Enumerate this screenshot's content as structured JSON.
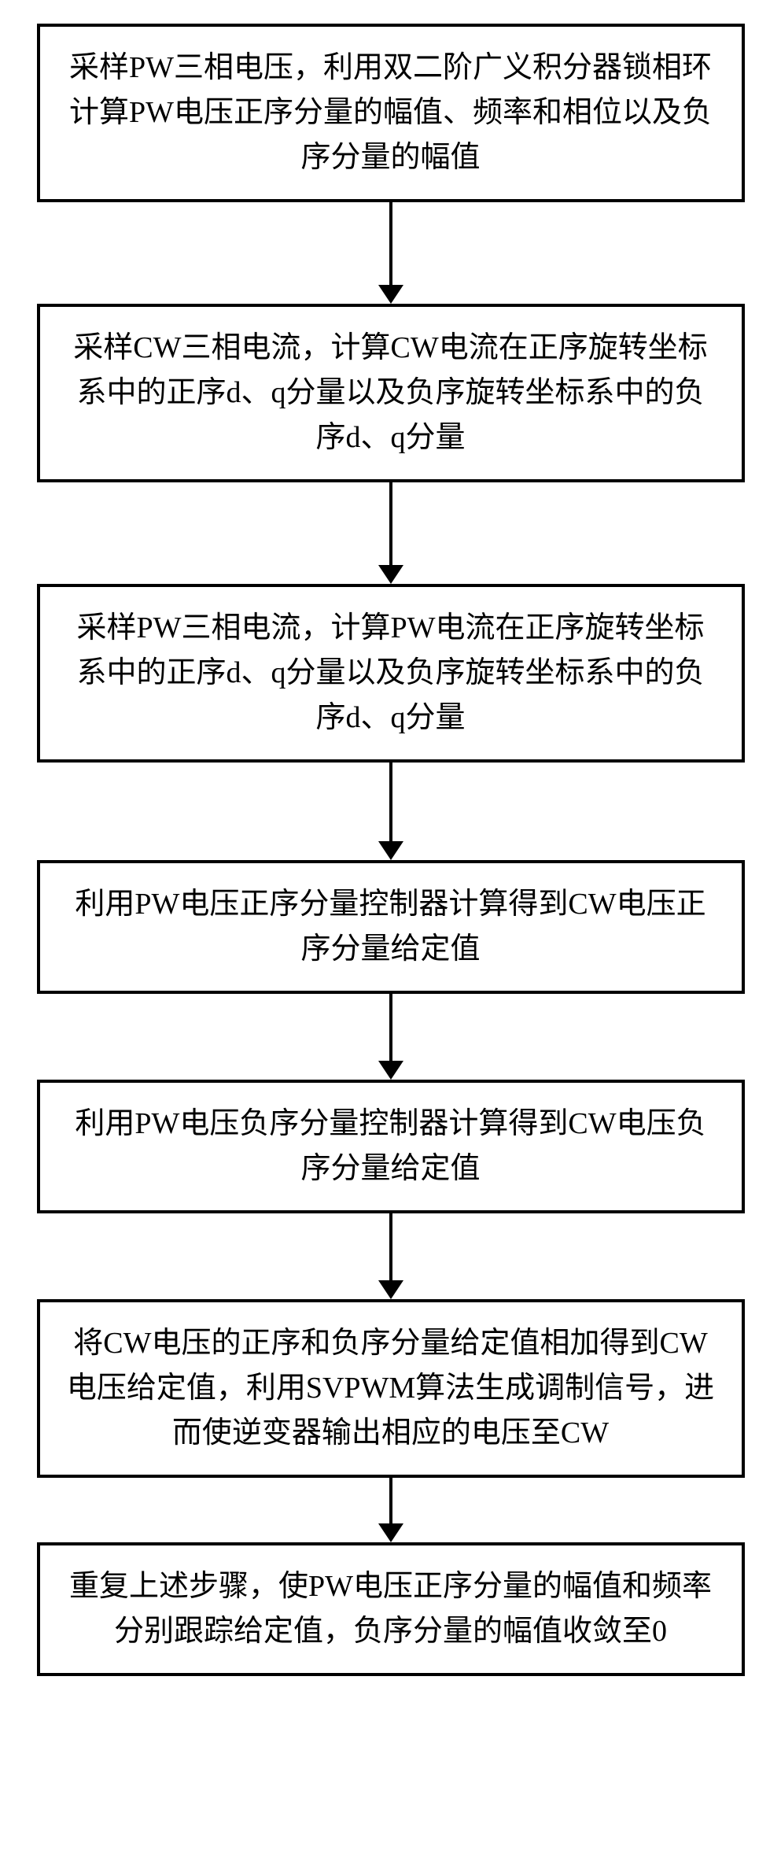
{
  "flowchart": {
    "type": "flowchart",
    "direction": "vertical",
    "box_border_color": "#000000",
    "box_border_width": 4,
    "box_background": "#ffffff",
    "text_color": "#000000",
    "font_size": 38,
    "arrow_color": "#000000",
    "arrow_line_width": 4,
    "arrow_head_width": 32,
    "arrow_head_height": 24,
    "steps": [
      {
        "text": "采样PW三相电压，利用双二阶广义积分器锁相环计算PW电压正序分量的幅值、频率和相位以及负序分量的幅值",
        "arrow_line_height": 105
      },
      {
        "text": "采样CW三相电流，计算CW电流在正序旋转坐标系中的正序d、q分量以及负序旋转坐标系中的负序d、q分量",
        "arrow_line_height": 105
      },
      {
        "text": "采样PW三相电流，计算PW电流在正序旋转坐标系中的正序d、q分量以及负序旋转坐标系中的负序d、q分量",
        "arrow_line_height": 100
      },
      {
        "text": "利用PW电压正序分量控制器计算得到CW电压正序分量给定值",
        "arrow_line_height": 85
      },
      {
        "text": "利用PW电压负序分量控制器计算得到CW电压负序分量给定值",
        "arrow_line_height": 85
      },
      {
        "text": "将CW电压的正序和负序分量给定值相加得到CW电压给定值，利用SVPWM算法生成调制信号，进而使逆变器输出相应的电压至CW",
        "arrow_line_height": 58
      },
      {
        "text": "重复上述步骤，使PW电压正序分量的幅值和频率分别跟踪给定值，负序分量的幅值收敛至0",
        "arrow_line_height": 0
      }
    ]
  }
}
